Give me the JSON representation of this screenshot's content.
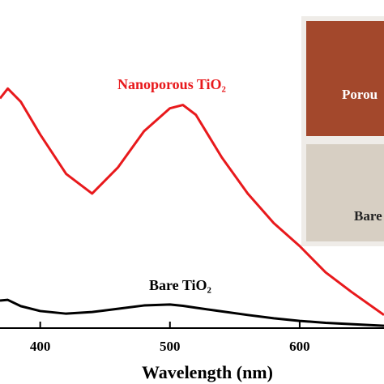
{
  "chart_data": {
    "type": "line",
    "x_label": "Wavelength (nm)",
    "x": [
      369,
      375,
      385,
      400,
      420,
      440,
      460,
      480,
      500,
      510,
      520,
      540,
      560,
      580,
      600,
      620,
      640,
      665
    ],
    "series": [
      {
        "name": "Nanoporous TiO₂",
        "color": "#e8191c",
        "values": [
          0.7,
          0.73,
          0.69,
          0.59,
          0.47,
          0.41,
          0.49,
          0.6,
          0.67,
          0.68,
          0.65,
          0.52,
          0.41,
          0.32,
          0.25,
          0.17,
          0.11,
          0.04
        ]
      },
      {
        "name": "Bare TiO₂",
        "color": "#000000",
        "values": [
          0.084,
          0.086,
          0.067,
          0.052,
          0.044,
          0.049,
          0.059,
          0.069,
          0.072,
          0.068,
          0.062,
          0.051,
          0.04,
          0.03,
          0.022,
          0.016,
          0.012,
          0.007
        ]
      }
    ],
    "xlim": [
      369,
      665
    ],
    "xticks": [
      400,
      500,
      600
    ],
    "ylim": [
      0,
      1
    ],
    "inset": {
      "top_label": "Porou",
      "bottom_label": "Bare"
    }
  }
}
